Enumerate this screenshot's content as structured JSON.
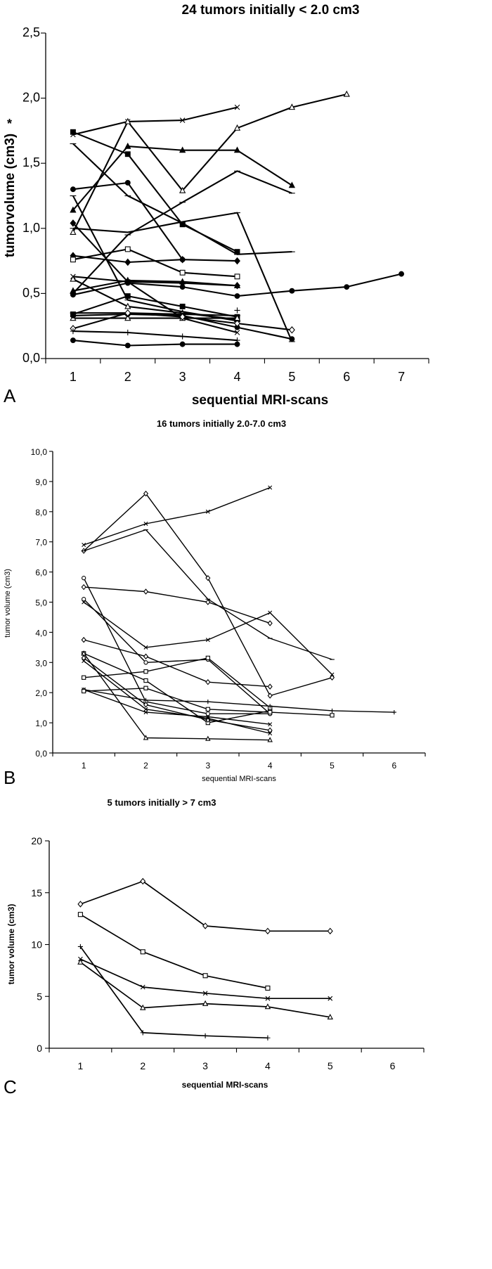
{
  "figure": {
    "panels": [
      {
        "letter": "A"
      },
      {
        "letter": "B"
      },
      {
        "letter": "C"
      }
    ]
  },
  "chart_data": [
    {
      "type": "line",
      "title": "24 tumors initially < 2.0 cm3",
      "xlabel": "sequential MRI-scans",
      "ylabel": "tumorvolume (cm3)",
      "x_ticks": [
        "1",
        "2",
        "3",
        "4",
        "5",
        "6",
        "7"
      ],
      "y_ticks": [
        "0,0",
        "0,5",
        "1,0",
        "1,5",
        "2,0",
        "2,5"
      ],
      "xlim": [
        0.5,
        7.5
      ],
      "ylim": [
        0,
        2.5
      ],
      "grid": false,
      "annotations": [
        "*"
      ],
      "series": [
        {
          "marker": "x",
          "values": [
            [
              1,
              1.72
            ],
            [
              2,
              1.82
            ],
            [
              3,
              1.83
            ],
            [
              4,
              1.93
            ]
          ]
        },
        {
          "marker": "open-triangle",
          "values": [
            [
              1,
              0.97
            ],
            [
              2,
              1.82
            ],
            [
              3,
              1.29
            ],
            [
              4,
              1.77
            ],
            [
              5,
              1.93
            ],
            [
              6,
              2.03
            ]
          ]
        },
        {
          "marker": "filled-triangle",
          "values": [
            [
              1,
              1.14
            ],
            [
              2,
              1.63
            ],
            [
              3,
              1.6
            ],
            [
              4,
              1.6
            ],
            [
              5,
              1.33
            ]
          ]
        },
        {
          "marker": "filled-square",
          "values": [
            [
              1,
              1.74
            ],
            [
              2,
              1.57
            ],
            [
              3,
              1.03
            ],
            [
              4,
              0.82
            ]
          ]
        },
        {
          "marker": "dash",
          "values": [
            [
              1,
              1.65
            ],
            [
              2,
              1.25
            ],
            [
              3,
              1.04
            ],
            [
              4,
              0.8
            ],
            [
              5,
              0.82
            ]
          ]
        },
        {
          "marker": "dash",
          "values": [
            [
              1,
              0.5
            ],
            [
              2,
              0.95
            ],
            [
              3,
              1.2
            ],
            [
              4,
              1.44
            ],
            [
              5,
              1.27
            ]
          ]
        },
        {
          "marker": "filled-circle",
          "values": [
            [
              1,
              1.3
            ],
            [
              2,
              1.35
            ],
            [
              3,
              0.76
            ]
          ]
        },
        {
          "marker": "filled-diamond",
          "values": [
            [
              1,
              1.04
            ],
            [
              2,
              0.59
            ],
            [
              3,
              0.58
            ],
            [
              4,
              0.56
            ]
          ]
        },
        {
          "marker": "dash",
          "values": [
            [
              1,
              1.0
            ],
            [
              2,
              0.97
            ],
            [
              3,
              1.05
            ],
            [
              4,
              1.12
            ],
            [
              5,
              0.13
            ]
          ]
        },
        {
          "marker": "filled-diamond",
          "values": [
            [
              1,
              0.79
            ],
            [
              2,
              0.74
            ],
            [
              3,
              0.76
            ],
            [
              4,
              0.75
            ]
          ]
        },
        {
          "marker": "open-square",
          "values": [
            [
              1,
              0.76
            ],
            [
              2,
              0.84
            ],
            [
              3,
              0.66
            ],
            [
              4,
              0.63
            ]
          ]
        },
        {
          "marker": "x",
          "values": [
            [
              1,
              0.63
            ],
            [
              2,
              0.59
            ],
            [
              3,
              0.31
            ],
            [
              4,
              0.2
            ]
          ]
        },
        {
          "marker": "filled-circle",
          "values": [
            [
              1,
              0.49
            ],
            [
              2,
              0.58
            ],
            [
              3,
              0.55
            ],
            [
              4,
              0.48
            ],
            [
              5,
              0.52
            ],
            [
              6,
              0.55
            ],
            [
              7,
              0.65
            ]
          ]
        },
        {
          "marker": "filled-triangle",
          "values": [
            [
              1,
              0.52
            ],
            [
              2,
              0.6
            ],
            [
              3,
              0.59
            ],
            [
              4,
              0.56
            ]
          ]
        },
        {
          "marker": "open-triangle",
          "values": [
            [
              1,
              0.61
            ],
            [
              2,
              0.4
            ],
            [
              3,
              0.35
            ],
            [
              4,
              0.3
            ]
          ]
        },
        {
          "marker": "filled-square",
          "values": [
            [
              1,
              0.34
            ],
            [
              2,
              0.48
            ],
            [
              3,
              0.4
            ],
            [
              4,
              0.32
            ]
          ]
        },
        {
          "marker": "open-triangle",
          "values": [
            [
              1,
              0.31
            ],
            [
              2,
              0.31
            ],
            [
              3,
              0.31
            ],
            [
              4,
              0.31
            ]
          ]
        },
        {
          "marker": "dash",
          "values": [
            [
              1,
              0.35
            ],
            [
              2,
              0.35
            ],
            [
              3,
              0.34
            ],
            [
              4,
              0.33
            ]
          ]
        },
        {
          "marker": "filled-circle",
          "values": [
            [
              1,
              0.33
            ],
            [
              2,
              0.34
            ],
            [
              3,
              0.33
            ],
            [
              4,
              0.24
            ],
            [
              5,
              0.15
            ]
          ]
        },
        {
          "marker": "open-diamond",
          "values": [
            [
              1,
              0.23
            ],
            [
              2,
              0.35
            ],
            [
              3,
              0.32
            ],
            [
              4,
              0.27
            ],
            [
              5,
              0.22
            ]
          ]
        },
        {
          "marker": "plus",
          "values": [
            [
              1,
              0.21
            ],
            [
              2,
              0.2
            ],
            [
              3,
              0.17
            ],
            [
              4,
              0.14
            ]
          ]
        },
        {
          "marker": "filled-circle",
          "values": [
            [
              1,
              0.14
            ],
            [
              2,
              0.1
            ],
            [
              3,
              0.11
            ],
            [
              4,
              0.11
            ]
          ]
        },
        {
          "marker": "dash",
          "values": [
            [
              1,
              1.25
            ],
            [
              2,
              0.45
            ],
            [
              3,
              0.36
            ],
            [
              4,
              0.29
            ]
          ]
        },
        {
          "marker": "plus",
          "values": [
            [
              4,
              0.37
            ]
          ]
        }
      ]
    },
    {
      "type": "line",
      "title": "16 tumors initially 2.0-7.0 cm3",
      "xlabel": "sequential MRI-scans",
      "ylabel": "tumor volume (cm3)",
      "x_ticks": [
        "1",
        "2",
        "3",
        "4",
        "5",
        "6"
      ],
      "y_ticks": [
        "0,0",
        "1,0",
        "2,0",
        "3,0",
        "4,0",
        "5,0",
        "6,0",
        "7,0",
        "8,0",
        "9,0",
        "10,0"
      ],
      "xlim": [
        0.5,
        6.5
      ],
      "ylim": [
        0,
        10
      ],
      "grid": false,
      "series": [
        {
          "marker": "x",
          "values": [
            [
              1,
              6.9
            ],
            [
              2,
              7.6
            ],
            [
              3,
              8.0
            ],
            [
              4,
              8.8
            ]
          ]
        },
        {
          "marker": "open-diamond",
          "values": [
            [
              1,
              6.7
            ],
            [
              2,
              8.6
            ],
            [
              3,
              5.8
            ],
            [
              4,
              1.9
            ],
            [
              5,
              2.5
            ]
          ]
        },
        {
          "marker": "dash",
          "values": [
            [
              1,
              6.7
            ],
            [
              2,
              7.4
            ],
            [
              3,
              5.1
            ],
            [
              4,
              3.8
            ],
            [
              5,
              3.1
            ]
          ]
        },
        {
          "marker": "open-circle",
          "values": [
            [
              1,
              5.8
            ],
            [
              2,
              1.7
            ],
            [
              3,
              1.3
            ],
            [
              4,
              1.3
            ]
          ]
        },
        {
          "marker": "open-diamond",
          "values": [
            [
              1,
              5.5
            ],
            [
              2,
              5.35
            ],
            [
              3,
              5.0
            ],
            [
              4,
              4.3
            ]
          ]
        },
        {
          "marker": "x",
          "values": [
            [
              1,
              5.0
            ],
            [
              2,
              3.5
            ],
            [
              3,
              3.75
            ],
            [
              4,
              4.65
            ],
            [
              5,
              2.6
            ]
          ]
        },
        {
          "marker": "open-circle",
          "values": [
            [
              1,
              5.1
            ],
            [
              2,
              3.0
            ],
            [
              3,
              3.1
            ],
            [
              4,
              1.3
            ]
          ]
        },
        {
          "marker": "open-diamond",
          "values": [
            [
              1,
              3.75
            ],
            [
              2,
              3.2
            ],
            [
              3,
              2.35
            ],
            [
              4,
              2.2
            ]
          ]
        },
        {
          "marker": "open-square",
          "values": [
            [
              1,
              3.3
            ],
            [
              2,
              2.4
            ],
            [
              3,
              1.0
            ],
            [
              4,
              1.4
            ]
          ]
        },
        {
          "marker": "open-diamond",
          "values": [
            [
              1,
              3.15
            ],
            [
              2,
              1.6
            ],
            [
              3,
              1.1
            ],
            [
              4,
              0.75
            ]
          ]
        },
        {
          "marker": "x",
          "values": [
            [
              1,
              3.05
            ],
            [
              2,
              1.45
            ],
            [
              3,
              1.15
            ],
            [
              4,
              0.65
            ]
          ]
        },
        {
          "marker": "open-square",
          "values": [
            [
              1,
              2.5
            ],
            [
              2,
              2.7
            ],
            [
              3,
              3.15
            ],
            [
              4,
              1.5
            ]
          ]
        },
        {
          "marker": "x",
          "values": [
            [
              1,
              2.1
            ],
            [
              2,
              1.35
            ],
            [
              3,
              1.2
            ],
            [
              4,
              0.95
            ]
          ]
        },
        {
          "marker": "plus",
          "values": [
            [
              1,
              2.1
            ],
            [
              2,
              1.75
            ],
            [
              3,
              1.7
            ],
            [
              4,
              1.55
            ],
            [
              5,
              1.4
            ],
            [
              6,
              1.35
            ]
          ]
        },
        {
          "marker": "open-square",
          "values": [
            [
              1,
              2.05
            ],
            [
              2,
              2.15
            ],
            [
              3,
              1.45
            ],
            [
              4,
              1.35
            ],
            [
              5,
              1.25
            ]
          ]
        },
        {
          "marker": "open-triangle",
          "values": [
            [
              1,
              3.3
            ],
            [
              2,
              0.5
            ],
            [
              3,
              0.47
            ],
            [
              4,
              0.43
            ]
          ]
        }
      ]
    },
    {
      "type": "line",
      "title": "5 tumors initially > 7 cm3",
      "xlabel": "sequential MRI-scans",
      "ylabel": "tumor volume (cm3)",
      "x_ticks": [
        "1",
        "2",
        "3",
        "4",
        "5",
        "6"
      ],
      "y_ticks": [
        "0",
        "5",
        "10",
        "15",
        "20"
      ],
      "xlim": [
        0.5,
        6.5
      ],
      "ylim": [
        0,
        20
      ],
      "grid": false,
      "series": [
        {
          "marker": "open-diamond",
          "values": [
            [
              1,
              13.9
            ],
            [
              2,
              16.1
            ],
            [
              3,
              11.8
            ],
            [
              4,
              11.3
            ],
            [
              5,
              11.3
            ]
          ]
        },
        {
          "marker": "open-square",
          "values": [
            [
              1,
              12.9
            ],
            [
              2,
              9.3
            ],
            [
              3,
              7.0
            ],
            [
              4,
              5.8
            ]
          ]
        },
        {
          "marker": "x",
          "values": [
            [
              1,
              8.6
            ],
            [
              2,
              5.9
            ],
            [
              3,
              5.3
            ],
            [
              4,
              4.8
            ],
            [
              5,
              4.8
            ]
          ]
        },
        {
          "marker": "open-triangle",
          "values": [
            [
              1,
              8.3
            ],
            [
              2,
              3.9
            ],
            [
              3,
              4.3
            ],
            [
              4,
              4.0
            ],
            [
              5,
              3.0
            ]
          ]
        },
        {
          "marker": "plus",
          "values": [
            [
              1,
              9.8
            ],
            [
              2,
              1.5
            ],
            [
              3,
              1.2
            ],
            [
              4,
              1.0
            ]
          ]
        }
      ]
    }
  ]
}
